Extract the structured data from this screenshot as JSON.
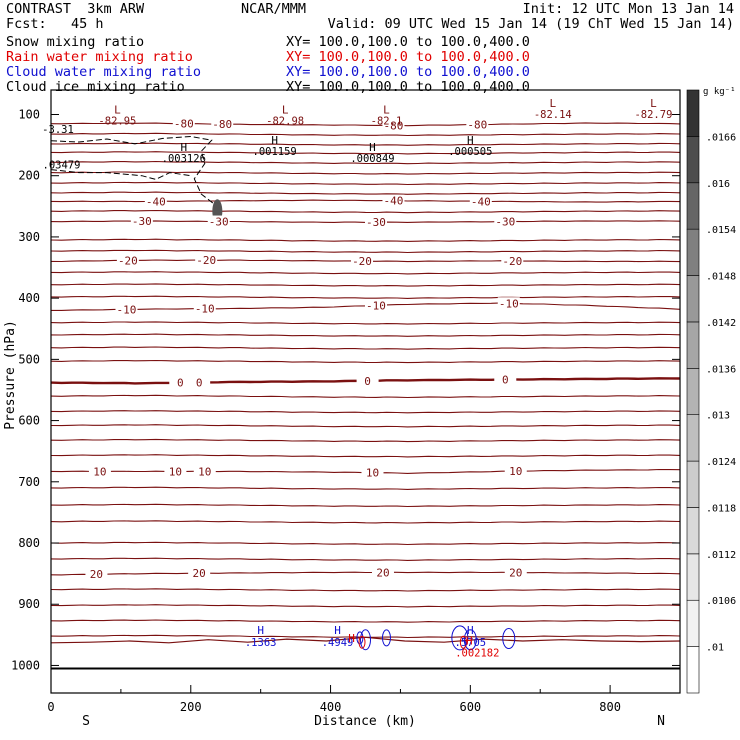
{
  "header": {
    "left_title": "CONTRAST  3km ARW",
    "center_title": "NCAR/MMM",
    "init": "Init: 12 UTC Mon 13 Jan 14",
    "fcst": "Fcst:   45 h",
    "valid": "Valid: 09 UTC Wed 15 Jan 14 (19 ChT Wed 15 Jan 14)"
  },
  "fields": [
    {
      "name": "Snow mixing ratio",
      "xy": "XY= 100.0,100.0 to 100.0,400.0",
      "color": "#000000"
    },
    {
      "name": "Rain water mixing ratio",
      "xy": "XY= 100.0,100.0 to 100.0,400.0",
      "color": "#e00000"
    },
    {
      "name": "Cloud water mixing ratio",
      "xy": "XY= 100.0,100.0 to 100.0,400.0",
      "color": "#1010d0"
    },
    {
      "name": "Cloud ice mixing ratio",
      "xy": "XY= 100.0,100.0 to 100.0,400.0",
      "color": "#000000"
    }
  ],
  "colors": {
    "isotherm": "#7a1010",
    "cloud_water": "#1010d0",
    "rain": "#e00000",
    "ice": "#000000",
    "axis": "#000000"
  },
  "chart_data": {
    "type": "cross-section",
    "xlabel": "Distance (km)",
    "ylabel": "Pressure (hPa)",
    "x_ticks": [
      "0",
      "200",
      "400",
      "600",
      "800"
    ],
    "x_tick_values": [
      0,
      200,
      400,
      600,
      800
    ],
    "xlim": [
      0,
      900
    ],
    "y_ticks": [
      "100",
      "200",
      "300",
      "400",
      "500",
      "600",
      "700",
      "800",
      "900",
      "1000"
    ],
    "y_tick_values": [
      100,
      200,
      300,
      400,
      500,
      600,
      700,
      800,
      900,
      1000
    ],
    "ylim": [
      1045,
      60
    ],
    "x_end_labels": {
      "left": "S",
      "right": "N"
    },
    "colorbar": {
      "units": "g kg⁻¹",
      "levels": [
        ".01",
        ".0106",
        ".0112",
        ".0118",
        ".0124",
        ".013",
        ".0136",
        ".0142",
        ".0148",
        ".0154",
        ".016",
        ".0166"
      ],
      "shades": [
        "#ffffff",
        "#f2f2f2",
        "#e6e6e6",
        "#d9d9d9",
        "#cccccc",
        "#bfbfbf",
        "#b3b3b3",
        "#a6a6a6",
        "#999999",
        "#808080",
        "#666666",
        "#4d4d4d",
        "#333333"
      ]
    },
    "isotherms": [
      {
        "label": "-80",
        "pressure": [
          115,
          114,
          116,
          117,
          118,
          116,
          114,
          115
        ],
        "label_x": [
          190,
          245,
          490,
          610
        ]
      },
      {
        "label": "-40",
        "pressure": [
          242,
          242,
          241,
          240,
          241,
          242,
          243,
          242
        ],
        "label_x": [
          150,
          490,
          615
        ]
      },
      {
        "label": "-30",
        "pressure": [
          275,
          274,
          275,
          276,
          276,
          275,
          274,
          274
        ],
        "label_x": [
          130,
          240,
          465,
          650
        ]
      },
      {
        "label": "-20",
        "pressure": [
          340,
          338,
          338,
          339,
          340,
          339,
          340,
          340
        ],
        "label_x": [
          110,
          222,
          445,
          660
        ]
      },
      {
        "label": "-10",
        "pressure": [
          420,
          418,
          417,
          415,
          410,
          408,
          412,
          418
        ],
        "label_x": [
          108,
          220,
          465,
          655
        ]
      },
      {
        "label": "0",
        "pressure": [
          538,
          539,
          537,
          536,
          534,
          533,
          532,
          531
        ],
        "label_x": [
          185,
          212,
          453,
          650
        ]
      },
      {
        "label": "10",
        "pressure": [
          683,
          683,
          683,
          684,
          686,
          683,
          681,
          680
        ],
        "label_x": [
          70,
          178,
          220,
          460,
          665
        ]
      },
      {
        "label": "20",
        "pressure": [
          852,
          850,
          849,
          848,
          848,
          848,
          849,
          850
        ],
        "label_x": [
          65,
          212,
          475,
          665
        ]
      }
    ],
    "isotherm_unlabeled": [
      132,
      148,
      162,
      178,
      195,
      212,
      228,
      258,
      305,
      323,
      358,
      378,
      398,
      440,
      460,
      481,
      503,
      560,
      585,
      608,
      632,
      657,
      710,
      738,
      765,
      800,
      826,
      876,
      902,
      927,
      952
    ],
    "high_low_labels": [
      {
        "kind": "L",
        "value": "82.95",
        "x": 95,
        "p": 98
      },
      {
        "kind": "L",
        "value": "82.98",
        "x": 335,
        "p": 98
      },
      {
        "kind": "L",
        "value": "82.1",
        "x": 480,
        "p": 98
      },
      {
        "kind": "L",
        "value": "82.14",
        "x": 718,
        "p": 88
      },
      {
        "kind": "L",
        "value": "82.79",
        "x": 862,
        "p": 88
      },
      {
        "kind": "",
        "value": "-3.31",
        "x": 10,
        "p": 112
      },
      {
        "kind": "H",
        "value": ".001159",
        "x": 320,
        "p": 148
      },
      {
        "kind": "H",
        "value": ".000849",
        "x": 460,
        "p": 160
      },
      {
        "kind": "H",
        "value": ".000505",
        "x": 600,
        "p": 148
      },
      {
        "kind": "H",
        "value": ".003126",
        "x": 190,
        "p": 160
      },
      {
        "kind": "",
        "value": ".03479",
        "x": 15,
        "p": 170
      }
    ],
    "cloud_water_labels": [
      {
        "kind": "H",
        "value": ".1363",
        "x": 300,
        "p": 968
      },
      {
        "kind": "H",
        "value": ".4949",
        "x": 410,
        "p": 968
      },
      {
        "kind": "H",
        "value": ".5705",
        "x": 600,
        "p": 968
      }
    ],
    "rain_labels": [
      {
        "kind": "H",
        "value": ".002182",
        "x": 610,
        "p": 985
      },
      {
        "kind": "H",
        "value": "",
        "x": 430,
        "p": 962
      }
    ],
    "surface_pressure": [
      963,
      962,
      960,
      963,
      958,
      962,
      957,
      960,
      954,
      960,
      962,
      957,
      960,
      958,
      960,
      961,
      960
    ]
  }
}
